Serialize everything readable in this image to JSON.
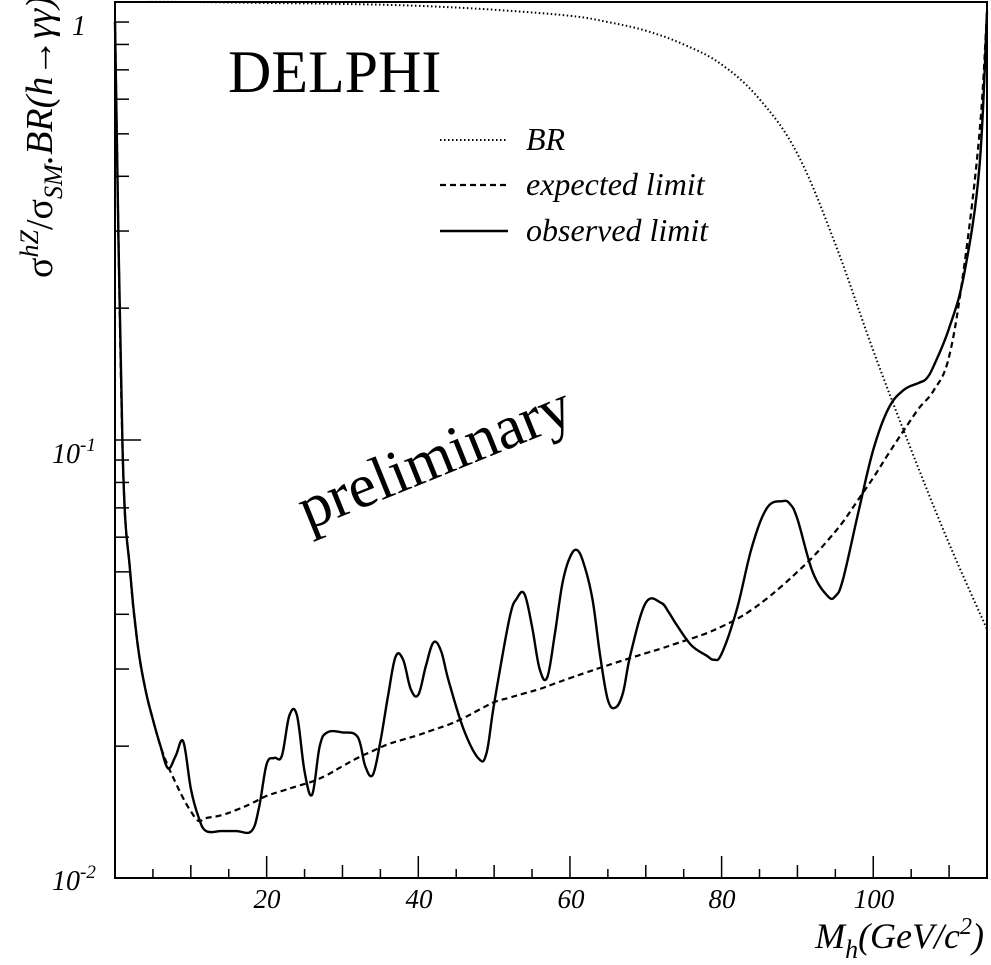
{
  "chart_data": {
    "type": "line",
    "title": "DELPHI",
    "annotation": "preliminary",
    "ylabel": {
      "sigma": "σ",
      "sup": "hZ",
      "slash_sigma": "/σ",
      "sub": "SM",
      "rest": ".BR(h→γγ)"
    },
    "xlabel": {
      "main": "M",
      "sub": "h",
      "unit": "(GeV/c",
      "sup": "2",
      "close": ")"
    },
    "xlim": [
      0,
      115
    ],
    "ylim": [
      0.01,
      1
    ],
    "yscale": "log",
    "x_ticks": [
      "20",
      "40",
      "60",
      "80",
      "100"
    ],
    "y_ticks": [
      {
        "base": "1",
        "exp": ""
      },
      {
        "base": "10",
        "exp": "-1"
      },
      {
        "base": "10",
        "exp": "-2"
      }
    ],
    "legend": {
      "placement": "top-right",
      "entries": [
        "BR",
        "expected limit",
        "observed limit"
      ]
    },
    "series": [
      {
        "name": "BR",
        "style": "dotted",
        "x": [
          0,
          10,
          20,
          30,
          40,
          50,
          60,
          65,
          70,
          75,
          80,
          85,
          90,
          95,
          100,
          105,
          110,
          115
        ],
        "y": [
          1,
          1,
          0.995,
          0.99,
          0.98,
          0.96,
          0.93,
          0.9,
          0.86,
          0.8,
          0.72,
          0.6,
          0.45,
          0.28,
          0.16,
          0.095,
          0.058,
          0.037
        ]
      },
      {
        "name": "expected limit",
        "style": "dashed",
        "x": [
          0,
          1,
          2,
          3,
          4,
          5,
          6,
          7,
          8,
          9,
          10,
          11,
          12,
          14,
          16,
          18,
          20,
          22,
          24,
          26,
          28,
          30,
          32,
          34,
          36,
          38,
          40,
          42,
          44,
          46,
          48,
          50,
          52,
          54,
          56,
          58,
          60,
          62,
          64,
          66,
          68,
          70,
          72,
          74,
          76,
          78,
          80,
          82,
          84,
          86,
          88,
          90,
          92,
          94,
          96,
          98,
          100,
          102,
          104,
          106,
          108,
          110,
          112,
          114,
          115
        ],
        "y": [
          0.9,
          0.095,
          0.05,
          0.034,
          0.027,
          0.023,
          0.02,
          0.018,
          0.0165,
          0.0152,
          0.0142,
          0.0135,
          0.0137,
          0.0139,
          0.0143,
          0.0148,
          0.0154,
          0.0158,
          0.0162,
          0.0166,
          0.0172,
          0.018,
          0.0188,
          0.0195,
          0.0202,
          0.0207,
          0.0212,
          0.0218,
          0.0224,
          0.0232,
          0.0242,
          0.0252,
          0.0258,
          0.0264,
          0.027,
          0.0278,
          0.0286,
          0.0294,
          0.0302,
          0.031,
          0.0318,
          0.0326,
          0.0334,
          0.0343,
          0.0352,
          0.0362,
          0.0375,
          0.039,
          0.041,
          0.0435,
          0.0465,
          0.05,
          0.054,
          0.059,
          0.065,
          0.073,
          0.082,
          0.093,
          0.105,
          0.118,
          0.13,
          0.155,
          0.25,
          0.5,
          0.95
        ]
      },
      {
        "name": "observed limit",
        "style": "solid",
        "x": [
          0,
          1,
          2,
          3,
          4,
          5,
          6,
          7,
          8,
          9,
          10,
          11,
          12,
          14,
          16,
          18,
          19,
          20,
          21,
          22,
          23,
          24,
          25,
          26,
          27,
          28,
          30,
          32,
          33,
          34,
          35,
          36,
          37,
          38,
          39,
          40,
          41,
          42,
          43,
          44,
          46,
          48,
          49,
          50,
          52,
          53,
          54,
          55,
          56,
          57,
          58,
          59,
          60,
          61,
          62,
          63,
          64,
          65,
          66,
          67,
          68,
          70,
          72,
          73,
          74,
          76,
          78,
          79,
          80,
          82,
          84,
          86,
          88,
          89,
          90,
          92,
          94,
          95,
          96,
          98,
          100,
          102,
          104,
          106,
          107,
          108,
          110,
          112,
          114,
          115
        ],
        "y": [
          0.9,
          0.095,
          0.05,
          0.034,
          0.027,
          0.023,
          0.02,
          0.0178,
          0.019,
          0.0205,
          0.016,
          0.0138,
          0.0128,
          0.0128,
          0.0128,
          0.0128,
          0.0145,
          0.0182,
          0.0188,
          0.019,
          0.0235,
          0.0235,
          0.0175,
          0.0155,
          0.02,
          0.0215,
          0.0215,
          0.021,
          0.018,
          0.0172,
          0.0205,
          0.026,
          0.032,
          0.0315,
          0.027,
          0.0262,
          0.0305,
          0.0345,
          0.033,
          0.0282,
          0.0218,
          0.0187,
          0.0193,
          0.025,
          0.039,
          0.0435,
          0.0445,
          0.0375,
          0.03,
          0.0287,
          0.036,
          0.047,
          0.054,
          0.056,
          0.051,
          0.043,
          0.032,
          0.0255,
          0.0245,
          0.0265,
          0.0325,
          0.0425,
          0.0425,
          0.0405,
          0.038,
          0.034,
          0.0322,
          0.0315,
          0.0325,
          0.041,
          0.057,
          0.07,
          0.0725,
          0.0715,
          0.066,
          0.05,
          0.044,
          0.044,
          0.048,
          0.068,
          0.095,
          0.118,
          0.13,
          0.135,
          0.138,
          0.148,
          0.18,
          0.24,
          0.42,
          0.95
        ]
      }
    ]
  }
}
